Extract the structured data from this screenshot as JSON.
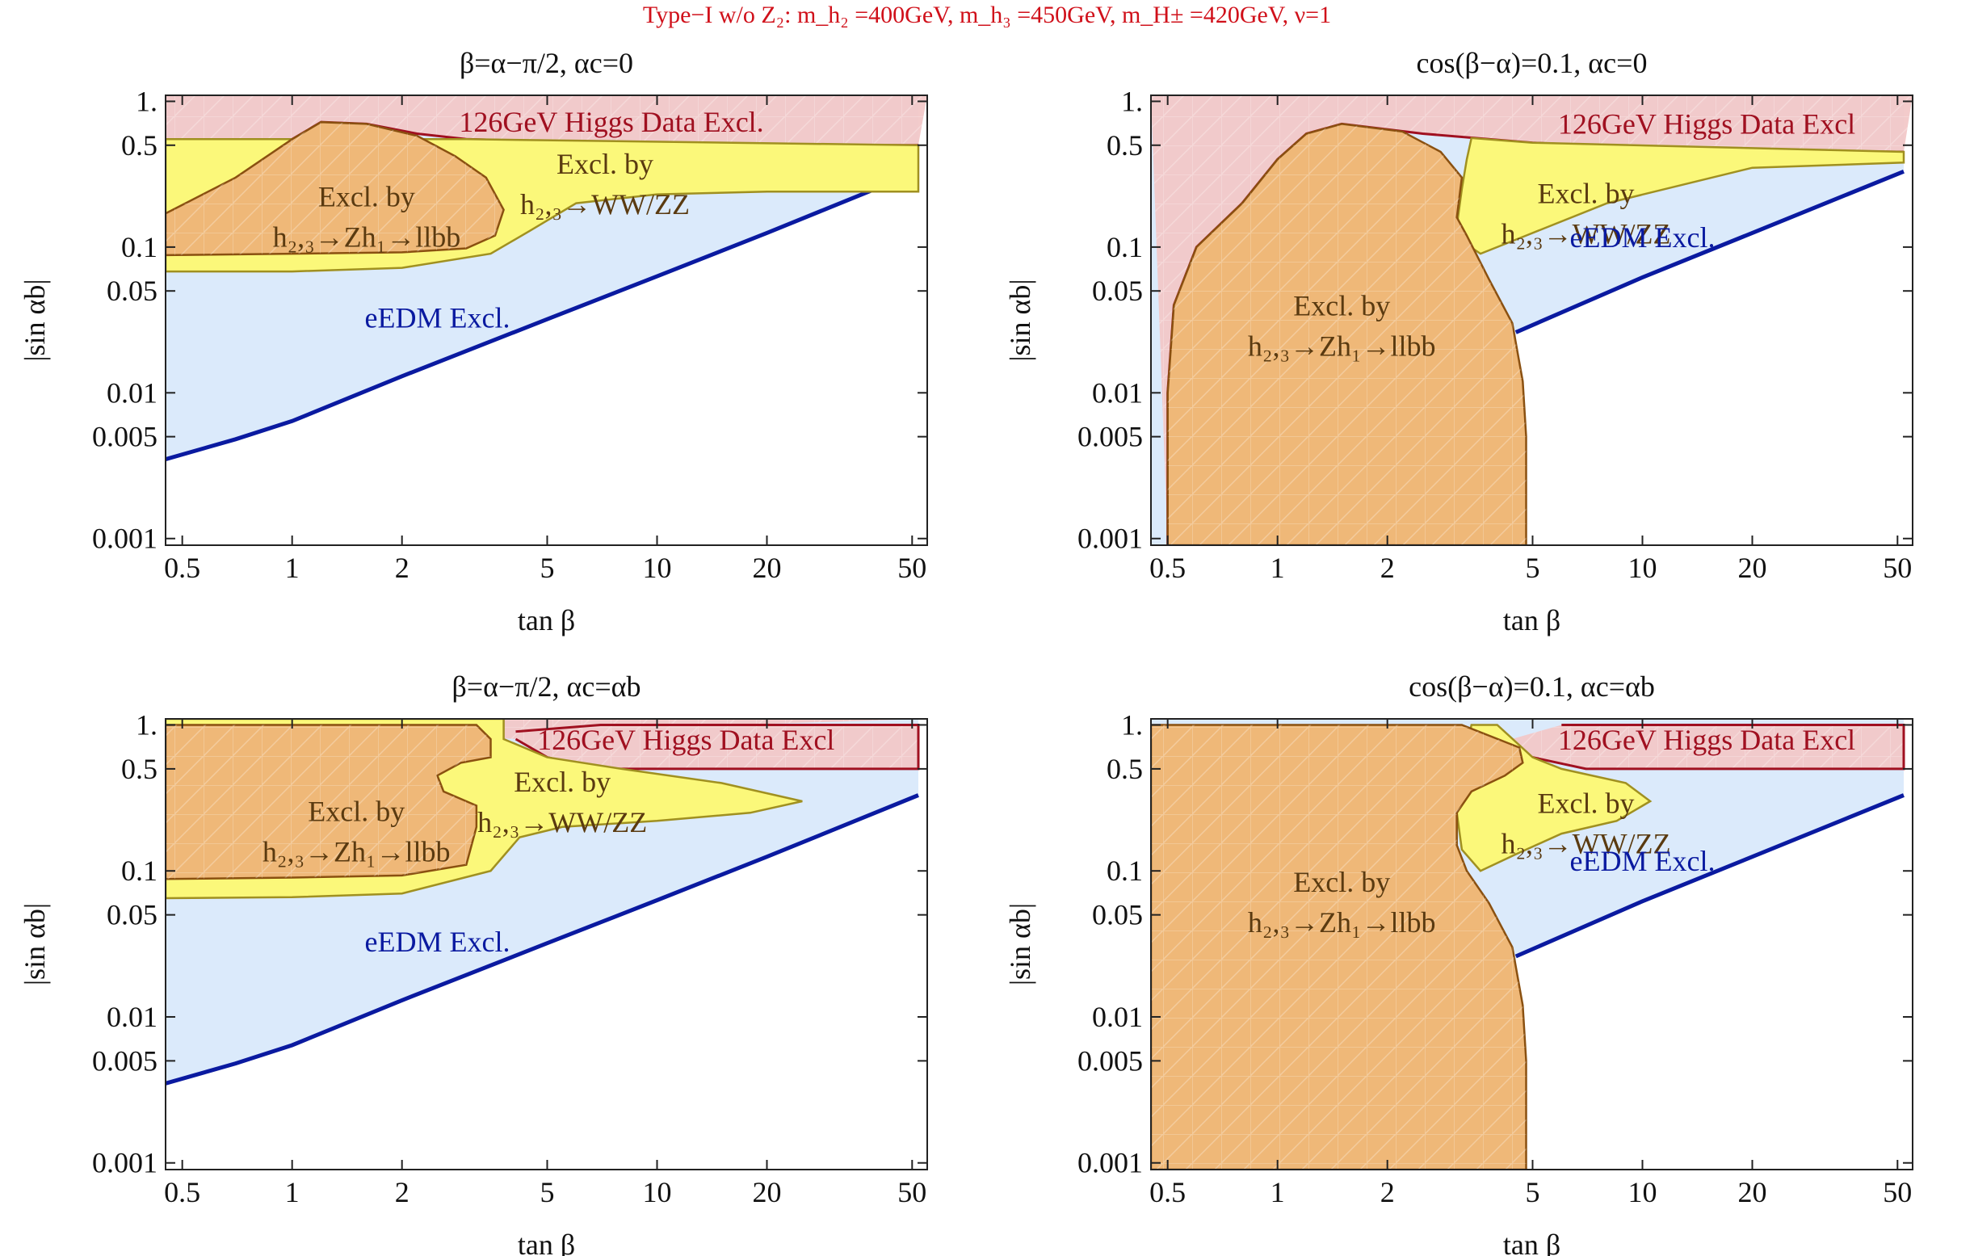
{
  "figure_title": "Type−I w/o Z₂: m_h₂ =400GeV, m_h₃ =450GeV, m_H± =420GeV, ν=1",
  "colors": {
    "title_red": "#d0101a",
    "eedm_fill": "#dbeafb",
    "eedm_line": "#0a1aa0",
    "higgs_fill": "#f2c8c8",
    "higgs_line": "#a01020",
    "higgs_text": "#a01020",
    "ww_fill": "#fbf87a",
    "ww_line": "#a09020",
    "zh_fill": "#efb878",
    "zh_line": "#8a5010",
    "eedm_text": "#0a1aa0",
    "excl_text": "#5a3a10"
  },
  "chart_data": [
    {
      "type": "region",
      "title": "β=α−π/2, αc=0",
      "xlabel": "tan β",
      "ylabel": "|sin αb|",
      "xscale": "log",
      "yscale": "log",
      "xlim": [
        0.45,
        55
      ],
      "ylim": [
        0.0009,
        1.1
      ],
      "xticks": [
        0.5,
        1,
        2,
        5,
        10,
        20,
        50
      ],
      "xtick_labels": [
        "0.5",
        "1",
        "2",
        "5",
        "10",
        "20",
        "50"
      ],
      "yticks": [
        0.001,
        0.005,
        0.01,
        0.05,
        0.1,
        0.5,
        1
      ],
      "ytick_labels": [
        "0.001",
        "0.005",
        "0.01",
        "0.05",
        "0.1",
        "0.5",
        "1."
      ],
      "regions": {
        "eedm": {
          "label": "eEDM Excl.",
          "label_at": [
            2.5,
            0.028
          ],
          "boundary": [
            [
              0.45,
              0.0035
            ],
            [
              0.7,
              0.0048
            ],
            [
              1,
              0.0064
            ],
            [
              2,
              0.013
            ],
            [
              5,
              0.032
            ],
            [
              10,
              0.063
            ],
            [
              20,
              0.125
            ],
            [
              52,
              0.33
            ]
          ],
          "top": [
            [
              52,
              0.33
            ],
            [
              52,
              1.1
            ],
            [
              0.45,
              1.1
            ]
          ]
        },
        "higgs": {
          "label": "126GeV Higgs Data Excl.",
          "label_at": [
            7.5,
            0.62
          ],
          "boundary": [
            [
              0.45,
              0.17
            ],
            [
              0.6,
              0.23
            ],
            [
              0.8,
              0.35
            ],
            [
              1.0,
              0.55
            ],
            [
              1.2,
              0.72
            ],
            [
              1.6,
              0.7
            ],
            [
              2.2,
              0.6
            ],
            [
              3,
              0.55
            ],
            [
              5,
              0.53
            ],
            [
              10,
              0.51
            ],
            [
              20,
              0.5
            ],
            [
              52,
              0.5
            ]
          ]
        },
        "ww": {
          "label_lines": [
            "Excl. by",
            "h₂,₃→WW/ZZ"
          ],
          "label_at": [
            7.2,
            0.32
          ],
          "outline": [
            [
              0.45,
              0.068
            ],
            [
              1,
              0.068
            ],
            [
              2,
              0.072
            ],
            [
              3.5,
              0.09
            ],
            [
              4.5,
              0.13
            ],
            [
              6,
              0.2
            ],
            [
              10,
              0.23
            ],
            [
              20,
              0.24
            ],
            [
              52,
              0.24
            ],
            [
              52,
              0.5
            ],
            [
              3,
              0.55
            ],
            [
              0.45,
              0.55
            ]
          ]
        },
        "zh": {
          "label_lines": [
            "Excl. by",
            "h₂,₃→Zh₁→llbb"
          ],
          "label_at": [
            1.6,
            0.19
          ],
          "outline": [
            [
              0.45,
              0.088
            ],
            [
              1,
              0.09
            ],
            [
              2,
              0.092
            ],
            [
              3,
              0.098
            ],
            [
              3.6,
              0.12
            ],
            [
              3.8,
              0.18
            ],
            [
              3.4,
              0.3
            ],
            [
              2.8,
              0.42
            ],
            [
              2.2,
              0.58
            ],
            [
              1.6,
              0.7
            ],
            [
              1.2,
              0.72
            ],
            [
              1.0,
              0.55
            ],
            [
              0.7,
              0.3
            ],
            [
              0.45,
              0.17
            ]
          ]
        }
      }
    },
    {
      "type": "region",
      "title": "cos(β−α)=0.1, αc=0",
      "xlabel": "tan β",
      "ylabel": "|sin αb|",
      "xscale": "log",
      "yscale": "log",
      "xlim": [
        0.45,
        55
      ],
      "ylim": [
        0.0009,
        1.1
      ],
      "xticks": [
        0.5,
        1,
        2,
        5,
        10,
        20,
        50
      ],
      "xtick_labels": [
        "0.5",
        "1",
        "2",
        "5",
        "10",
        "20",
        "50"
      ],
      "yticks": [
        0.001,
        0.005,
        0.01,
        0.05,
        0.1,
        0.5,
        1
      ],
      "ytick_labels": [
        "0.001",
        "0.005",
        "0.01",
        "0.05",
        "0.1",
        "0.5",
        "1."
      ],
      "regions": {
        "eedm": {
          "label": "eEDM Excl.",
          "label_at": [
            10,
            0.1
          ],
          "boundary": [
            [
              4.5,
              0.026
            ],
            [
              10,
              0.062
            ],
            [
              20,
              0.125
            ],
            [
              52,
              0.33
            ]
          ],
          "top": [
            [
              52,
              0.33
            ],
            [
              52,
              1.1
            ],
            [
              0.45,
              1.1
            ],
            [
              0.45,
              0.0009
            ],
            [
              4.8,
              0.0009
            ]
          ]
        },
        "higgs": {
          "label": "126GeV Higgs Data Excl",
          "label_at": [
            15,
            0.6
          ],
          "boundary": [
            [
              0.5,
              0.0009
            ],
            [
              0.5,
              0.01
            ],
            [
              0.52,
              0.04
            ],
            [
              0.6,
              0.1
            ],
            [
              0.8,
              0.2
            ],
            [
              1.0,
              0.4
            ],
            [
              1.2,
              0.6
            ],
            [
              1.5,
              0.7
            ],
            [
              2.5,
              0.6
            ],
            [
              5,
              0.52
            ],
            [
              10,
              0.48
            ],
            [
              20,
              0.46
            ],
            [
              52,
              0.45
            ]
          ]
        },
        "ww": {
          "label_lines": [
            "Excl. by",
            "h₂,₃→WW/ZZ"
          ],
          "label_at": [
            7,
            0.2
          ],
          "outline": [
            [
              3.1,
              0.14
            ],
            [
              3.2,
              0.11
            ],
            [
              3.6,
              0.09
            ],
            [
              4.8,
              0.12
            ],
            [
              8,
              0.2
            ],
            [
              20,
              0.35
            ],
            [
              52,
              0.38
            ],
            [
              52,
              0.45
            ],
            [
              5,
              0.52
            ],
            [
              3.4,
              0.56
            ],
            [
              3.3,
              0.4
            ],
            [
              3.2,
              0.25
            ]
          ]
        },
        "zh": {
          "label_lines": [
            "Excl. by",
            "h₂,₃→Zh₁→llbb"
          ],
          "label_at": [
            1.5,
            0.034
          ],
          "outline": [
            [
              0.5,
              0.0009
            ],
            [
              0.5,
              0.01
            ],
            [
              0.52,
              0.04
            ],
            [
              0.6,
              0.1
            ],
            [
              0.8,
              0.2
            ],
            [
              1.0,
              0.4
            ],
            [
              1.2,
              0.6
            ],
            [
              1.5,
              0.7
            ],
            [
              2.2,
              0.62
            ],
            [
              2.8,
              0.45
            ],
            [
              3.2,
              0.3
            ],
            [
              3.1,
              0.16
            ],
            [
              3.3,
              0.12
            ],
            [
              3.8,
              0.06
            ],
            [
              4.4,
              0.03
            ],
            [
              4.7,
              0.012
            ],
            [
              4.8,
              0.005
            ],
            [
              4.8,
              0.0009
            ]
          ]
        }
      }
    },
    {
      "type": "region",
      "title": "β=α−π/2, αc=αb",
      "xlabel": "tan β",
      "ylabel": "|sin αb|",
      "xscale": "log",
      "yscale": "log",
      "xlim": [
        0.45,
        55
      ],
      "ylim": [
        0.0009,
        1.1
      ],
      "xticks": [
        0.5,
        1,
        2,
        5,
        10,
        20,
        50
      ],
      "xtick_labels": [
        "0.5",
        "1",
        "2",
        "5",
        "10",
        "20",
        "50"
      ],
      "yticks": [
        0.001,
        0.005,
        0.01,
        0.05,
        0.1,
        0.5,
        1
      ],
      "ytick_labels": [
        "0.001",
        "0.005",
        "0.01",
        "0.05",
        "0.1",
        "0.5",
        "1."
      ],
      "regions": {
        "eedm": {
          "label": "eEDM Excl.",
          "label_at": [
            2.5,
            0.028
          ],
          "boundary": [
            [
              0.45,
              0.0035
            ],
            [
              0.7,
              0.0048
            ],
            [
              1,
              0.0064
            ],
            [
              2,
              0.013
            ],
            [
              5,
              0.032
            ],
            [
              10,
              0.063
            ],
            [
              20,
              0.125
            ],
            [
              52,
              0.33
            ]
          ],
          "top": [
            [
              52,
              0.33
            ],
            [
              52,
              1.1
            ],
            [
              0.45,
              1.1
            ]
          ]
        },
        "higgs": {
          "label": "126GeV Higgs Data Excl",
          "label_at": [
            12,
            0.68
          ],
          "boundary": [
            [
              4.1,
              0.8
            ],
            [
              5,
              0.6
            ],
            [
              7,
              0.5
            ],
            [
              20,
              0.5
            ],
            [
              52,
              0.5
            ],
            [
              52,
              1.0
            ],
            [
              7,
              1.0
            ],
            [
              4.1,
              0.9
            ]
          ]
        },
        "ww": {
          "label_lines": [
            "Excl. by",
            "h₂,₃→WW/ZZ"
          ],
          "label_at": [
            5.5,
            0.35
          ],
          "outline": [
            [
              0.45,
              0.065
            ],
            [
              1,
              0.066
            ],
            [
              2,
              0.07
            ],
            [
              3.5,
              0.1
            ],
            [
              4.2,
              0.17
            ],
            [
              5.5,
              0.2
            ],
            [
              10,
              0.22
            ],
            [
              18,
              0.25
            ],
            [
              25,
              0.3
            ],
            [
              15,
              0.4
            ],
            [
              8,
              0.5
            ],
            [
              5,
              0.6
            ],
            [
              3.8,
              0.8
            ],
            [
              3.8,
              1.1
            ],
            [
              0.45,
              1.1
            ]
          ]
        },
        "zh": {
          "label_lines": [
            "Excl. by",
            "h₂,₃→Zh₁→llbb"
          ],
          "label_at": [
            1.5,
            0.22
          ],
          "outline": [
            [
              0.45,
              0.088
            ],
            [
              1,
              0.09
            ],
            [
              2,
              0.093
            ],
            [
              3,
              0.11
            ],
            [
              3.2,
              0.2
            ],
            [
              3.2,
              0.28
            ],
            [
              2.6,
              0.35
            ],
            [
              2.5,
              0.45
            ],
            [
              2.9,
              0.55
            ],
            [
              3.5,
              0.6
            ],
            [
              3.5,
              0.8
            ],
            [
              3.2,
              1.0
            ],
            [
              0.45,
              1.0
            ]
          ]
        }
      }
    },
    {
      "type": "region",
      "title": "cos(β−α)=0.1, αc=αb",
      "xlabel": "tan β",
      "ylabel": "|sin αb|",
      "xscale": "log",
      "yscale": "log",
      "xlim": [
        0.45,
        55
      ],
      "ylim": [
        0.0009,
        1.1
      ],
      "xticks": [
        0.5,
        1,
        2,
        5,
        10,
        20,
        50
      ],
      "xtick_labels": [
        "0.5",
        "1",
        "2",
        "5",
        "10",
        "20",
        "50"
      ],
      "yticks": [
        0.001,
        0.005,
        0.01,
        0.05,
        0.1,
        0.5,
        1
      ],
      "ytick_labels": [
        "0.001",
        "0.005",
        "0.01",
        "0.05",
        "0.1",
        "0.5",
        "1."
      ],
      "regions": {
        "eedm": {
          "label": "eEDM Excl.",
          "label_at": [
            10,
            0.1
          ],
          "boundary": [
            [
              4.5,
              0.026
            ],
            [
              10,
              0.062
            ],
            [
              20,
              0.125
            ],
            [
              52,
              0.33
            ]
          ],
          "top": [
            [
              52,
              0.33
            ],
            [
              52,
              1.1
            ],
            [
              0.45,
              1.1
            ],
            [
              0.45,
              0.0009
            ],
            [
              4.8,
              0.0009
            ]
          ]
        },
        "higgs": {
          "label": "126GeV Higgs Data Excl",
          "label_at": [
            15,
            0.68
          ],
          "boundary": [
            [
              4,
              0.75
            ],
            [
              5,
              0.6
            ],
            [
              7,
              0.5
            ],
            [
              20,
              0.5
            ],
            [
              52,
              0.5
            ],
            [
              52,
              1.0
            ],
            [
              6,
              1.0
            ]
          ]
        },
        "ww": {
          "label_lines": [
            "Excl. by",
            "h₂,₃→WW/ZZ"
          ],
          "label_at": [
            7,
            0.25
          ],
          "outline": [
            [
              3.2,
              0.14
            ],
            [
              3.6,
              0.1
            ],
            [
              4.5,
              0.13
            ],
            [
              6,
              0.18
            ],
            [
              8.5,
              0.22
            ],
            [
              10.5,
              0.3
            ],
            [
              9,
              0.4
            ],
            [
              6,
              0.5
            ],
            [
              5,
              0.6
            ],
            [
              4,
              1.0
            ],
            [
              3.4,
              1.0
            ],
            [
              3.2,
              0.5
            ],
            [
              3.1,
              0.25
            ]
          ]
        },
        "zh": {
          "label_lines": [
            "Excl. by",
            "h₂,₃→Zh₁→llbb"
          ],
          "label_at": [
            1.5,
            0.072
          ],
          "outline": [
            [
              0.45,
              0.0009
            ],
            [
              0.45,
              1.0
            ],
            [
              3.2,
              1.0
            ],
            [
              4.6,
              0.7
            ],
            [
              4.7,
              0.55
            ],
            [
              4.2,
              0.45
            ],
            [
              3.4,
              0.35
            ],
            [
              3.1,
              0.25
            ],
            [
              3.1,
              0.15
            ],
            [
              3.3,
              0.1
            ],
            [
              3.8,
              0.06
            ],
            [
              4.4,
              0.03
            ],
            [
              4.7,
              0.012
            ],
            [
              4.8,
              0.005
            ],
            [
              4.8,
              0.0009
            ]
          ]
        }
      }
    }
  ]
}
